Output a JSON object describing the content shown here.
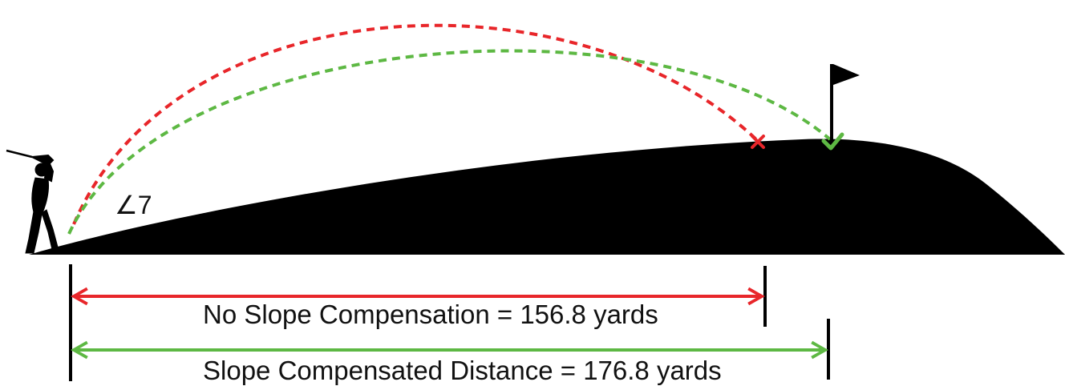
{
  "diagram": {
    "angle_label": "∠7",
    "measurements": [
      {
        "id": "no-slope",
        "label": "No Slope Compensation = 156.8 yards",
        "outcome": "miss",
        "color": "#e8262a"
      },
      {
        "id": "slope",
        "label": "Slope Compensated Distance = 176.8 yards",
        "outcome": "hit",
        "color": "#5db843"
      }
    ],
    "colors": {
      "terrain": "#000000",
      "miss": "#e8262a",
      "hit": "#5db843",
      "text": "#111111"
    },
    "icons": [
      "golfer-silhouette",
      "flag-icon",
      "x-mark-icon",
      "check-mark-icon"
    ]
  }
}
